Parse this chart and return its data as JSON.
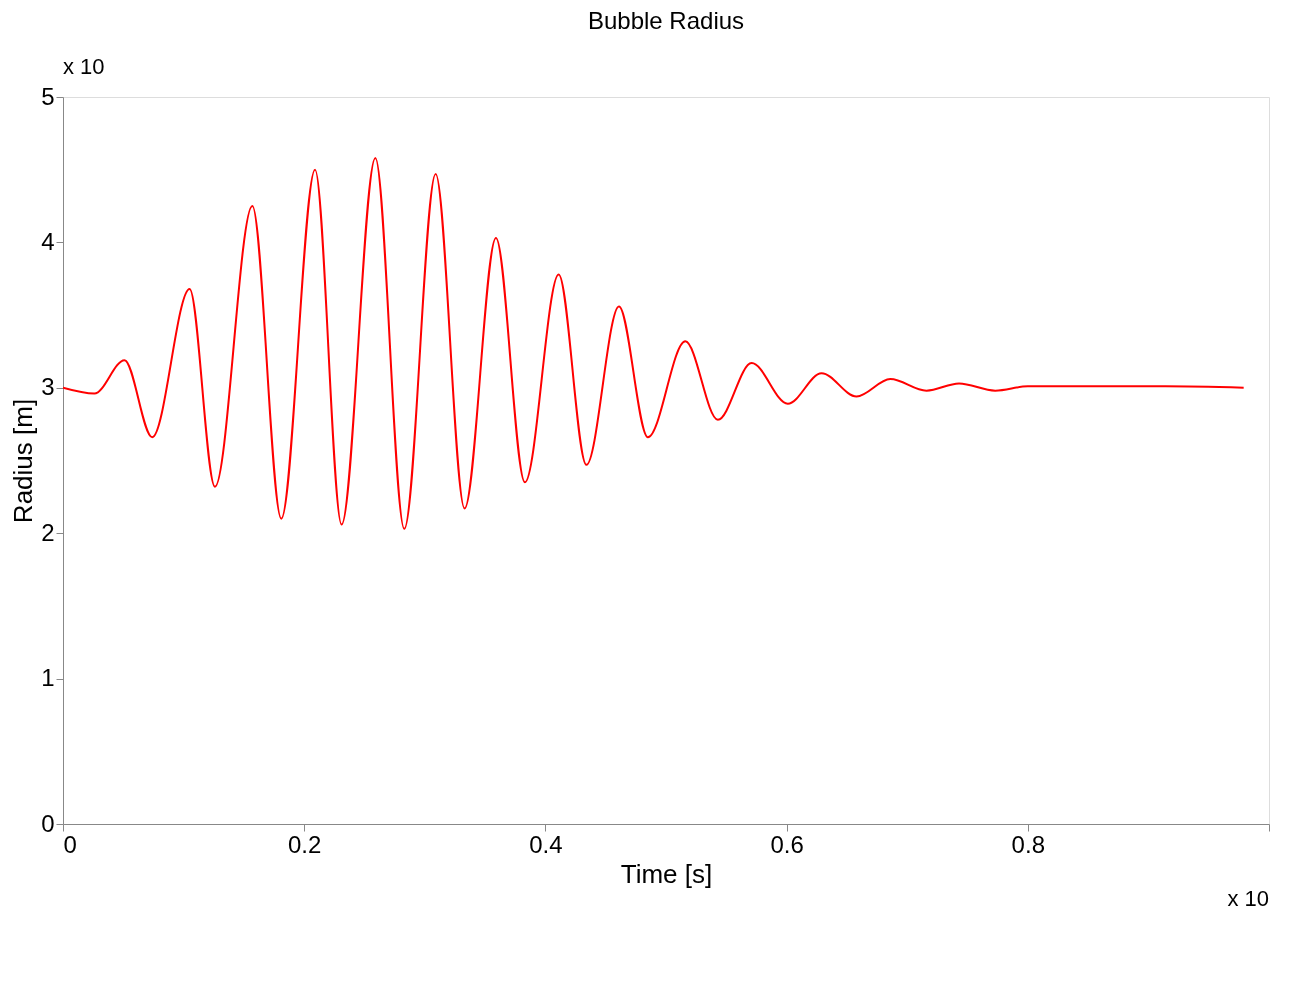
{
  "chart_data": {
    "type": "line",
    "title": "Bubble Radius",
    "xlabel": "Time [s]",
    "ylabel": "Radius [m]",
    "x": [
      0,
      0.026,
      0.051,
      0.074,
      0.105,
      0.126,
      0.157,
      0.181,
      0.209,
      0.231,
      0.259,
      0.283,
      0.309,
      0.333,
      0.359,
      0.383,
      0.411,
      0.434,
      0.461,
      0.485,
      0.516,
      0.543,
      0.571,
      0.601,
      0.629,
      0.658,
      0.686,
      0.716,
      0.743,
      0.773,
      0.8,
      0.851,
      0.914,
      0.979
    ],
    "series": [
      {
        "color": "#ff0000",
        "values": [
          3.0,
          2.96,
          3.19,
          2.66,
          3.68,
          2.32,
          4.25,
          2.1,
          4.5,
          2.06,
          4.58,
          2.03,
          4.47,
          2.17,
          4.03,
          2.35,
          3.78,
          2.47,
          3.56,
          2.66,
          3.32,
          2.78,
          3.17,
          2.89,
          3.1,
          2.94,
          3.06,
          2.98,
          3.03,
          2.98,
          3.01,
          3.01,
          3.01,
          3.0
        ]
      }
    ],
    "xlim": [
      0,
      1
    ],
    "xticks": [
      {
        "value": 0,
        "label": "0"
      },
      0.2,
      0.4,
      0.6,
      0.8,
      {
        "value": 1,
        "label": null
      }
    ],
    "ylim": [
      0,
      5
    ],
    "yticks": [
      0,
      1,
      2,
      3,
      4,
      5
    ],
    "grid": false,
    "marker": "none",
    "line_style": "solid",
    "annotations": [
      "x 10",
      "x 10"
    ]
  }
}
